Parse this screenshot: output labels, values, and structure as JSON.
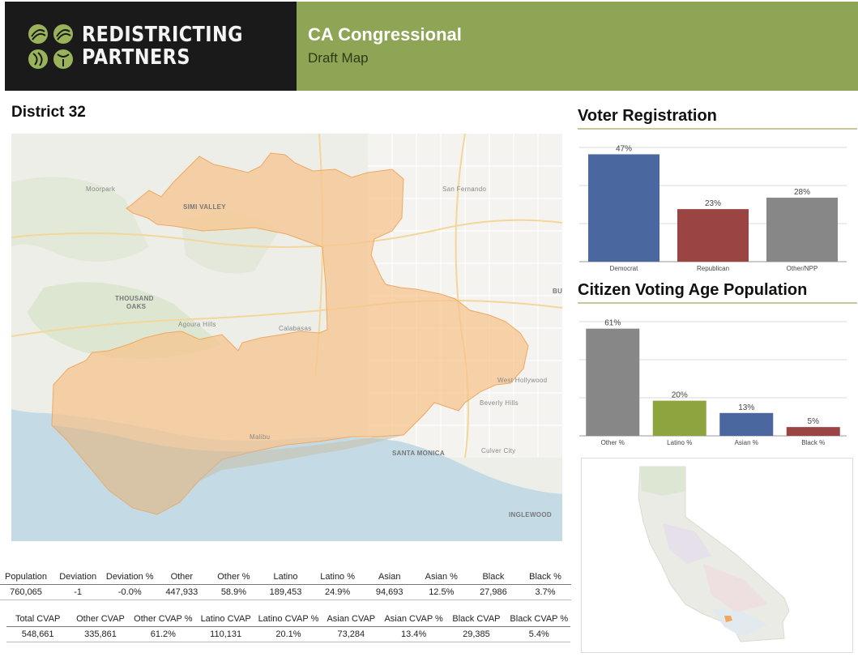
{
  "brand": {
    "line1": "REDISTRICTING",
    "line2": "PARTNERS"
  },
  "banner": {
    "title": "CA Congressional",
    "subtitle": "Draft Map"
  },
  "district_title": "District 32",
  "map": {
    "labels": {
      "moorpark": "Moorpark",
      "simi_valley": "SIMI VALLEY",
      "san_fernando": "San Fernando",
      "thousand": "THOUSAND",
      "oaks": "OAKS",
      "agoura_hills": "Agoura Hills",
      "calabasas": "Calabasas",
      "west_hollywood": "West Hollywood",
      "beverly_hills": "Beverly Hills",
      "malibu": "Malibu",
      "santa_monica": "SANTA MONICA",
      "culver_city": "Culver City",
      "inglewood": "INGLEWOOD",
      "bu": "BU"
    }
  },
  "voter_registration_title": "Voter Registration",
  "cvap_title": "Citizen Voting Age Population",
  "chart_data": [
    {
      "type": "bar",
      "title": "Voter Registration",
      "categories": [
        "Democrat",
        "Republican",
        "Other/NPP"
      ],
      "values": [
        47,
        23,
        28
      ],
      "value_labels": [
        "47%",
        "23%",
        "28%"
      ],
      "colors": [
        "#4a67a0",
        "#9b4444",
        "#878787"
      ],
      "ylim": [
        0,
        50
      ],
      "grid": true
    },
    {
      "type": "bar",
      "title": "Citizen Voting Age Population",
      "categories": [
        "Other %",
        "Latino %",
        "Asian %",
        "Black %"
      ],
      "values": [
        61,
        20,
        13,
        5
      ],
      "value_labels": [
        "61%",
        "20%",
        "13%",
        "5%"
      ],
      "colors": [
        "#878787",
        "#8ea53f",
        "#4a67a0",
        "#9b4444"
      ],
      "ylim": [
        0,
        65
      ],
      "grid": true
    }
  ],
  "stats": {
    "headers": [
      "Population",
      "Deviation",
      "Deviation %",
      "Other",
      "Other %",
      "Latino",
      "Latino %",
      "Asian",
      "Asian %",
      "Black",
      "Black %"
    ],
    "values": [
      "760,065",
      "-1",
      "-0.0%",
      "447,933",
      "58.9%",
      "189,453",
      "24.9%",
      "94,693",
      "12.5%",
      "27,986",
      "3.7%"
    ]
  },
  "cvap_stats": {
    "headers": [
      "Total CVAP",
      "Other CVAP",
      "Other CVAP %",
      "Latino CVAP",
      "Latino CVAP %",
      "Asian CVAP",
      "Asian CVAP %",
      "Black CVAP",
      "Black CVAP %"
    ],
    "values": [
      "548,661",
      "335,861",
      "61.2%",
      "110,131",
      "20.1%",
      "73,284",
      "13.4%",
      "29,385",
      "5.4%"
    ]
  },
  "colors": {
    "header_dark": "#1b1a1a",
    "banner_green": "#8ea555",
    "district_fill": "#f7c48a",
    "ocean": "#c4dbe6"
  }
}
